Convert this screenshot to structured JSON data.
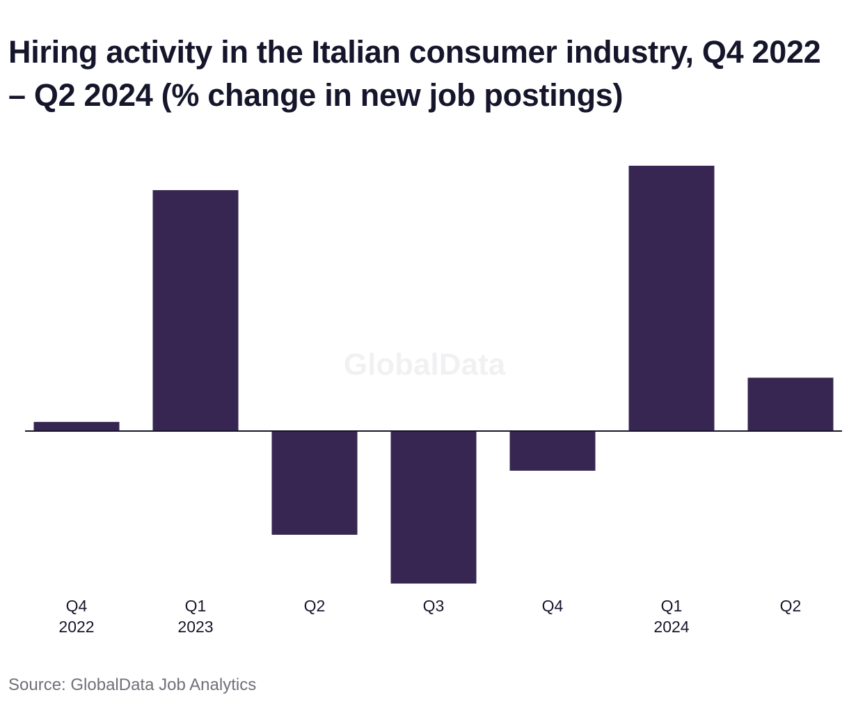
{
  "colors": {
    "bar": "#362651",
    "axis": "#15152b",
    "text": "#15152b",
    "source_text": "#6f6f78",
    "watermark": "#f1f1f3"
  },
  "watermark": "GlobalData",
  "source": "Source: GlobalData Job Analytics",
  "chart_data": {
    "type": "bar",
    "title": "Hiring activity in the Italian consumer industry, Q4 2022 – Q2 2024 (% change in new job postings)",
    "xlabel": "",
    "ylabel": "",
    "grid": false,
    "legend": "none",
    "categories": [
      "Q4 2022",
      "Q1 2023",
      "Q2 2023",
      "Q3 2023",
      "Q4 2023",
      "Q1 2024",
      "Q2 2024"
    ],
    "tick_labels": [
      [
        "Q4",
        "2022"
      ],
      [
        "Q1",
        "2023"
      ],
      [
        "Q2"
      ],
      [
        "Q3"
      ],
      [
        "Q4"
      ],
      [
        "Q1",
        "2024"
      ],
      [
        "Q2"
      ]
    ],
    "values": [
      0.6,
      15.8,
      -6.8,
      -10.0,
      -2.6,
      17.4,
      3.5
    ],
    "ylim": [
      -10.0,
      17.4
    ]
  }
}
